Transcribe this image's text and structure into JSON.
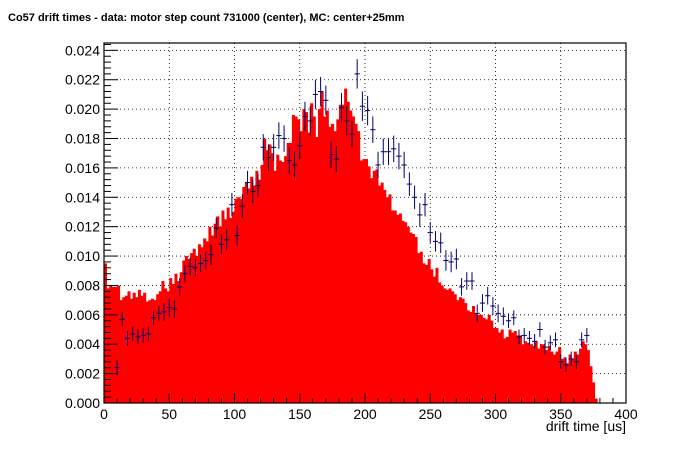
{
  "chart_data": {
    "type": "bar",
    "title": "Co57 drift times - data: motor step count 731000 (center), MC: center+25mm",
    "xlabel": "drift time [us]",
    "ylabel": "",
    "xlim": [
      0,
      400
    ],
    "ylim": [
      0,
      0.0245
    ],
    "xticks": [
      0,
      50,
      100,
      150,
      200,
      250,
      300,
      350,
      400
    ],
    "yticks": [
      "0.000",
      "0.002",
      "0.004",
      "0.006",
      "0.008",
      "0.010",
      "0.012",
      "0.014",
      "0.016",
      "0.018",
      "0.020",
      "0.022",
      "0.024"
    ],
    "grid": true,
    "bin_width": 2,
    "colors": {
      "mc_fill": "#ff0000",
      "data_points": "#000066",
      "frame": "#000000",
      "grid": "#000000"
    },
    "series": [
      {
        "type": "histogram",
        "x": [
          1,
          3,
          5,
          7,
          9,
          11,
          13,
          15,
          17,
          19,
          21,
          23,
          25,
          27,
          29,
          31,
          33,
          35,
          37,
          39,
          41,
          43,
          45,
          47,
          49,
          51,
          53,
          55,
          57,
          59,
          61,
          63,
          65,
          67,
          69,
          71,
          73,
          75,
          77,
          79,
          81,
          83,
          85,
          87,
          89,
          91,
          93,
          95,
          97,
          99,
          101,
          103,
          105,
          107,
          109,
          111,
          113,
          115,
          117,
          119,
          121,
          123,
          125,
          127,
          129,
          131,
          133,
          135,
          137,
          139,
          141,
          143,
          145,
          147,
          149,
          151,
          153,
          155,
          157,
          159,
          161,
          163,
          165,
          167,
          169,
          171,
          173,
          175,
          177,
          179,
          181,
          183,
          185,
          187,
          189,
          191,
          193,
          195,
          197,
          199,
          201,
          203,
          205,
          207,
          209,
          211,
          213,
          215,
          217,
          219,
          221,
          223,
          225,
          227,
          229,
          231,
          233,
          235,
          237,
          239,
          241,
          243,
          245,
          247,
          249,
          251,
          253,
          255,
          257,
          259,
          261,
          263,
          265,
          267,
          269,
          271,
          273,
          275,
          277,
          279,
          281,
          283,
          285,
          287,
          289,
          291,
          293,
          295,
          297,
          299,
          301,
          303,
          305,
          307,
          309,
          311,
          313,
          315,
          317,
          319,
          321,
          323,
          325,
          327,
          329,
          331,
          333,
          335,
          337,
          339,
          341,
          343,
          345,
          347,
          349,
          351,
          353,
          355,
          357,
          359,
          361,
          363,
          365,
          367,
          369,
          371,
          373,
          375,
          377,
          379
        ],
        "values": [
          0.0095,
          0.0078,
          0.008,
          0.0079,
          0.0079,
          0.008,
          0.007,
          0.0072,
          0.0073,
          0.0076,
          0.0071,
          0.0075,
          0.0072,
          0.0077,
          0.0073,
          0.0075,
          0.0069,
          0.007,
          0.0071,
          0.007,
          0.0074,
          0.0076,
          0.0083,
          0.0078,
          0.0076,
          0.0085,
          0.0081,
          0.0088,
          0.0083,
          0.0089,
          0.0097,
          0.01,
          0.0098,
          0.0102,
          0.0105,
          0.01,
          0.0108,
          0.0106,
          0.0112,
          0.011,
          0.012,
          0.0114,
          0.0122,
          0.0127,
          0.012,
          0.0131,
          0.0125,
          0.0133,
          0.0126,
          0.013,
          0.0139,
          0.014,
          0.0139,
          0.0147,
          0.015,
          0.0146,
          0.0154,
          0.0148,
          0.0158,
          0.0152,
          0.0162,
          0.018,
          0.0172,
          0.0176,
          0.017,
          0.0158,
          0.0169,
          0.0165,
          0.0164,
          0.0168,
          0.0177,
          0.0177,
          0.0196,
          0.0195,
          0.0193,
          0.0185,
          0.02,
          0.0198,
          0.0184,
          0.0204,
          0.0195,
          0.0181,
          0.02,
          0.0212,
          0.0195,
          0.0199,
          0.0188,
          0.019,
          0.0185,
          0.0193,
          0.0203,
          0.0203,
          0.0214,
          0.0205,
          0.0199,
          0.0195,
          0.019,
          0.0185,
          0.0165,
          0.0166,
          0.0166,
          0.0161,
          0.0153,
          0.0158,
          0.0159,
          0.0148,
          0.015,
          0.0145,
          0.014,
          0.0142,
          0.0131,
          0.0131,
          0.0128,
          0.0129,
          0.0124,
          0.0123,
          0.012,
          0.0116,
          0.0115,
          0.0113,
          0.0102,
          0.0103,
          0.0095,
          0.0094,
          0.0098,
          0.0091,
          0.0086,
          0.0092,
          0.0082,
          0.008,
          0.0078,
          0.0077,
          0.0078,
          0.0076,
          0.0074,
          0.007,
          0.0072,
          0.0071,
          0.0068,
          0.0063,
          0.0062,
          0.0066,
          0.0061,
          0.006,
          0.006,
          0.0058,
          0.0057,
          0.006,
          0.0056,
          0.0051,
          0.0051,
          0.0048,
          0.005,
          0.0044,
          0.0045,
          0.005,
          0.0048,
          0.0049,
          0.0046,
          0.0046,
          0.004,
          0.0042,
          0.0041,
          0.004,
          0.0039,
          0.0042,
          0.0037,
          0.004,
          0.004,
          0.0036,
          0.0039,
          0.0035,
          0.0033,
          0.0035,
          0.0038,
          0.003,
          0.0031,
          0.0027,
          0.0033,
          0.003,
          0.0035,
          0.0033,
          0.0037,
          0.0042,
          0.004,
          0.0036,
          0.0025,
          0.0014,
          0.0003,
          0.0
        ]
      },
      {
        "type": "errorbar",
        "x": [
          10,
          14,
          18,
          22,
          26,
          30,
          34,
          38,
          42,
          46,
          50,
          54,
          58,
          62,
          66,
          70,
          74,
          78,
          82,
          86,
          90,
          94,
          98,
          102,
          106,
          110,
          114,
          118,
          122,
          126,
          130,
          134,
          138,
          142,
          146,
          150,
          154,
          158,
          162,
          166,
          170,
          174,
          178,
          182,
          186,
          190,
          194,
          198,
          202,
          206,
          210,
          214,
          218,
          222,
          226,
          230,
          234,
          238,
          242,
          246,
          250,
          254,
          258,
          262,
          266,
          270,
          274,
          278,
          282,
          286,
          290,
          294,
          298,
          302,
          306,
          310,
          314,
          318,
          322,
          326,
          330,
          334,
          338,
          342,
          346,
          350,
          354,
          358,
          362,
          366,
          370
        ],
        "values": [
          0.0024,
          0.0057,
          0.0044,
          0.0047,
          0.0045,
          0.0046,
          0.0047,
          0.0058,
          0.0061,
          0.0062,
          0.0065,
          0.0064,
          0.0079,
          0.0088,
          0.0093,
          0.0092,
          0.0095,
          0.0097,
          0.0101,
          0.0119,
          0.0108,
          0.0111,
          0.0135,
          0.0114,
          0.0134,
          0.015,
          0.0144,
          0.0148,
          0.0174,
          0.0167,
          0.0174,
          0.0182,
          0.018,
          0.0165,
          0.0162,
          0.0175,
          0.0195,
          0.0192,
          0.021,
          0.0212,
          0.0206,
          0.0169,
          0.0166,
          0.0201,
          0.0192,
          0.0183,
          0.0224,
          0.0202,
          0.0199,
          0.0186,
          0.0162,
          0.0171,
          0.0171,
          0.0173,
          0.0168,
          0.0162,
          0.0149,
          0.014,
          0.0128,
          0.0135,
          0.0116,
          0.011,
          0.0109,
          0.0097,
          0.0096,
          0.0098,
          0.0079,
          0.0083,
          0.0083,
          0.0061,
          0.0068,
          0.0073,
          0.0066,
          0.0061,
          0.0059,
          0.0056,
          0.0058,
          0.0045,
          0.0046,
          0.0044,
          0.0042,
          0.005,
          0.0038,
          0.0041,
          0.0043,
          0.0028,
          0.0026,
          0.003,
          0.0028,
          0.0043,
          0.0046
        ],
        "errors": [
          0.0005,
          0.0005,
          0.0005,
          0.0005,
          0.0005,
          0.0005,
          0.0005,
          0.0005,
          0.0005,
          0.0006,
          0.0006,
          0.0006,
          0.0006,
          0.0006,
          0.0006,
          0.0006,
          0.0006,
          0.0006,
          0.0007,
          0.0007,
          0.0007,
          0.0007,
          0.0008,
          0.0007,
          0.0008,
          0.0008,
          0.0008,
          0.0008,
          0.0009,
          0.0009,
          0.0009,
          0.0009,
          0.0009,
          0.0009,
          0.0009,
          0.0009,
          0.001,
          0.001,
          0.001,
          0.001,
          0.001,
          0.0009,
          0.0009,
          0.001,
          0.001,
          0.0009,
          0.001,
          0.001,
          0.001,
          0.0009,
          0.0009,
          0.0009,
          0.0009,
          0.0009,
          0.0009,
          0.0009,
          0.0008,
          0.0008,
          0.0008,
          0.0008,
          0.0007,
          0.0007,
          0.0007,
          0.0007,
          0.0007,
          0.0007,
          0.0006,
          0.0006,
          0.0006,
          0.0006,
          0.0006,
          0.0006,
          0.0006,
          0.0006,
          0.0006,
          0.0005,
          0.0005,
          0.0005,
          0.0005,
          0.0005,
          0.0005,
          0.0005,
          0.0005,
          0.0005,
          0.0005,
          0.0005,
          0.0005,
          0.0005,
          0.0005,
          0.0005,
          0.0005
        ]
      }
    ]
  }
}
